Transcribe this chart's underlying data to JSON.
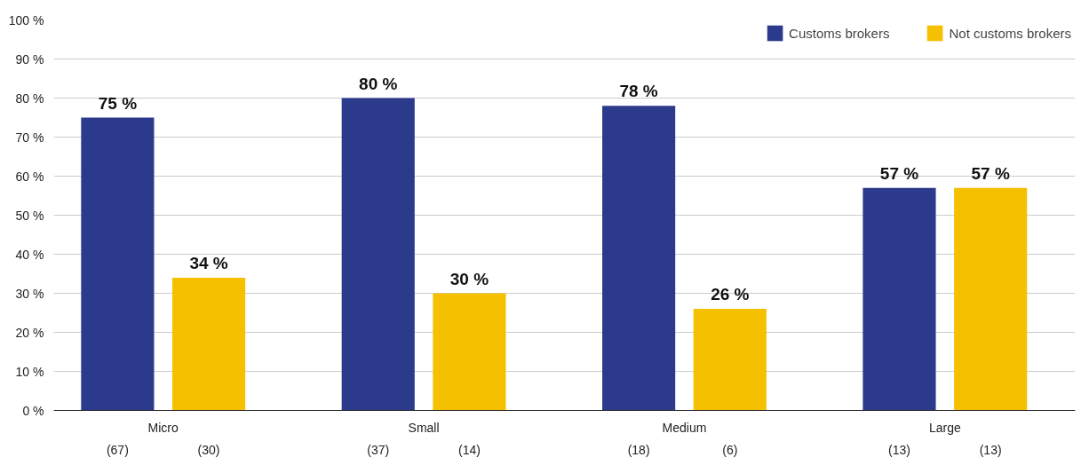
{
  "chart_data": {
    "type": "bar",
    "categories": [
      "Micro",
      "Small",
      "Medium",
      "Large"
    ],
    "series": [
      {
        "name": "Customs brokers",
        "color": "#2b3a8b",
        "values": [
          75,
          80,
          78,
          57
        ],
        "value_labels": [
          "75 %",
          "80 %",
          "78 %",
          "57 %"
        ]
      },
      {
        "name": "Not customs brokers",
        "color": "#f5c000",
        "values": [
          34,
          30,
          26,
          57
        ],
        "value_labels": [
          "34 %",
          "30 %",
          "26 %",
          "57 %"
        ]
      }
    ],
    "ylim": [
      0,
      100
    ],
    "yticks": [
      {
        "value": 0,
        "label": "0 %"
      },
      {
        "value": 10,
        "label": "10 %"
      },
      {
        "value": 20,
        "label": "20 %"
      },
      {
        "value": 30,
        "label": "30 %"
      },
      {
        "value": 40,
        "label": "40 %"
      },
      {
        "value": 50,
        "label": "50 %"
      },
      {
        "value": 60,
        "label": "60 %"
      },
      {
        "value": 70,
        "label": "70 %"
      },
      {
        "value": 80,
        "label": "80 %"
      },
      {
        "value": 90,
        "label": "90 %"
      },
      {
        "value": 100,
        "label": "100 %"
      }
    ],
    "annotations": [
      "(67)",
      "(30)",
      "(37)",
      "(14)",
      "(18)",
      "(6)",
      "(13)",
      "(13)"
    ],
    "grid": "y",
    "legend": "top right"
  }
}
